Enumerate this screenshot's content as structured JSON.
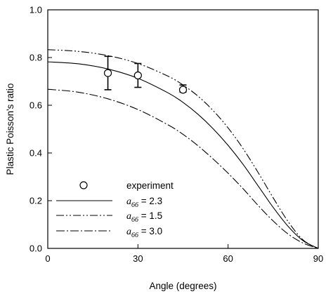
{
  "chart_data": {
    "type": "line",
    "title": "",
    "xlabel": "Angle (degrees)",
    "ylabel": "Plastic Poisson's ratio",
    "xlim": [
      0,
      90
    ],
    "ylim": [
      0,
      1.0
    ],
    "x_ticks": [
      0,
      30,
      60,
      90
    ],
    "y_ticks": [
      0.0,
      0.2,
      0.4,
      0.6,
      0.8,
      1.0
    ],
    "x_tick_labels": [
      "0",
      "30",
      "60",
      "90"
    ],
    "y_tick_labels": [
      "0.0",
      "0.2",
      "0.4",
      "0.6",
      "0.8",
      "1.0"
    ],
    "grid": false,
    "legend_position": "bottom-left",
    "series": [
      {
        "name": "experiment",
        "type": "scatter",
        "marker": "open-circle",
        "x": [
          20,
          30,
          45
        ],
        "y": [
          0.735,
          0.725,
          0.665
        ],
        "error_low": [
          0.665,
          0.675,
          0.655
        ],
        "error_high": [
          0.805,
          0.775,
          0.685
        ]
      },
      {
        "legend_symbol": "a",
        "legend_subscript": "66",
        "legend_value": " = 2.3",
        "style": "solid",
        "x": [
          0,
          10,
          20,
          30,
          40,
          45,
          50,
          55,
          60,
          65,
          70,
          75,
          80,
          85,
          90
        ],
        "y": [
          0.782,
          0.774,
          0.752,
          0.713,
          0.652,
          0.612,
          0.562,
          0.502,
          0.432,
          0.352,
          0.262,
          0.172,
          0.092,
          0.032,
          0.0
        ]
      },
      {
        "legend_symbol": "a",
        "legend_subscript": "66",
        "legend_value": " = 1.5",
        "style": "dash-dot-dot",
        "x": [
          0,
          10,
          20,
          30,
          40,
          45,
          50,
          55,
          60,
          65,
          70,
          75,
          80,
          85,
          90
        ],
        "y": [
          0.833,
          0.826,
          0.808,
          0.775,
          0.722,
          0.685,
          0.638,
          0.578,
          0.505,
          0.418,
          0.318,
          0.212,
          0.112,
          0.035,
          0.0
        ]
      },
      {
        "legend_symbol": "a",
        "legend_subscript": "66",
        "legend_value": " = 3.0",
        "style": "dash-dot",
        "x": [
          0,
          10,
          20,
          30,
          40,
          45,
          50,
          55,
          60,
          65,
          70,
          75,
          80,
          85,
          90
        ],
        "y": [
          0.667,
          0.655,
          0.627,
          0.582,
          0.518,
          0.478,
          0.43,
          0.375,
          0.315,
          0.25,
          0.18,
          0.115,
          0.06,
          0.022,
          0.0
        ]
      }
    ]
  }
}
